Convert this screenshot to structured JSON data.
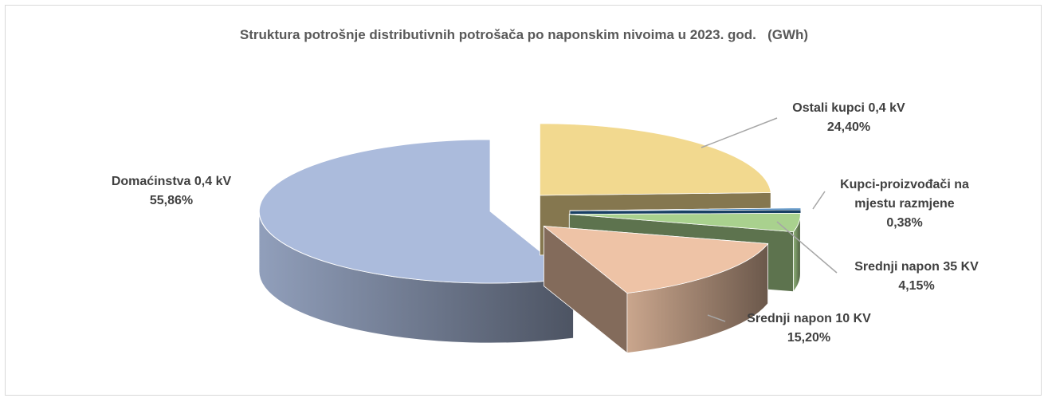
{
  "chart_data": {
    "type": "pie3d",
    "title": "Struktura potrošnje distributivnih potrošača po naponskim nivoima u 2023. god.   (GWh)",
    "categories": [
      "Ostali kupci 0,4 kV",
      "Kupci-proizvođači na mjestu razmjene",
      "Srednji napon 35 KV",
      "Srednji napon 10 KV",
      "Domaćinstva 0,4 kV"
    ],
    "values": [
      24.4,
      0.38,
      4.15,
      15.2,
      55.86
    ],
    "value_labels": [
      "24,40%",
      "0,38%",
      "4,15%",
      "15,20%",
      "55,86%"
    ],
    "colors": [
      "#f2d98f",
      "#2e75b6",
      "#a9d18e",
      "#eec3a6",
      "#abbbdc"
    ]
  }
}
